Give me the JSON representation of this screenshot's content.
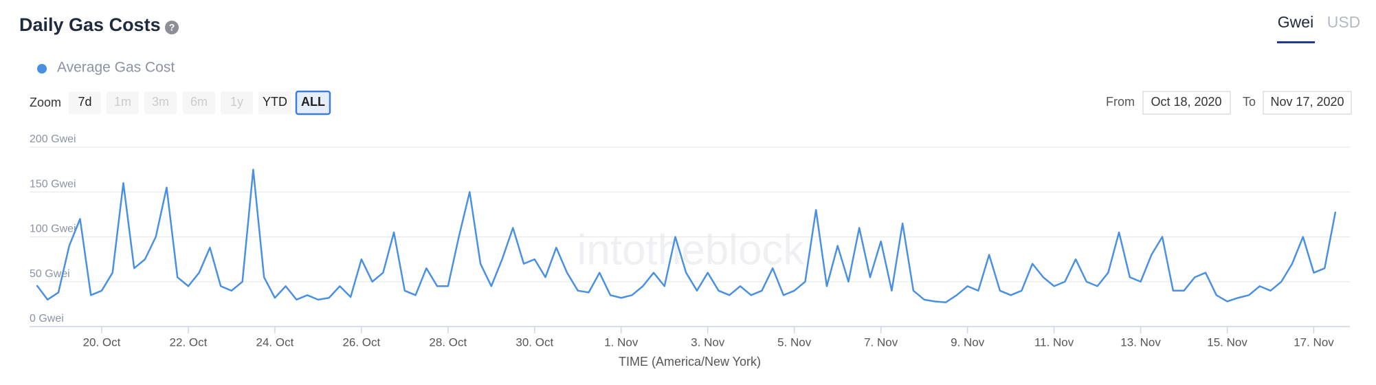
{
  "chart_data": {
    "type": "line",
    "title": "Daily Gas Costs",
    "help_icon": "?",
    "watermark": "intotheblock",
    "x_label": "TIME (America/New York)",
    "xlim": [
      "2020-10-18T08:00",
      "2020-11-17T20:00"
    ],
    "xticks": [
      {
        "value": "2020-10-20T00:00",
        "label": "20. Oct"
      },
      {
        "value": "2020-10-22T00:00",
        "label": "22. Oct"
      },
      {
        "value": "2020-10-24T00:00",
        "label": "24. Oct"
      },
      {
        "value": "2020-10-26T00:00",
        "label": "26. Oct"
      },
      {
        "value": "2020-10-28T00:00",
        "label": "28. Oct"
      },
      {
        "value": "2020-10-30T00:00",
        "label": "30. Oct"
      },
      {
        "value": "2020-11-01T00:00",
        "label": "1. Nov"
      },
      {
        "value": "2020-11-03T00:00",
        "label": "3. Nov"
      },
      {
        "value": "2020-11-05T00:00",
        "label": "5. Nov"
      },
      {
        "value": "2020-11-07T00:00",
        "label": "7. Nov"
      },
      {
        "value": "2020-11-09T00:00",
        "label": "9. Nov"
      },
      {
        "value": "2020-11-11T00:00",
        "label": "11. Nov"
      },
      {
        "value": "2020-11-13T00:00",
        "label": "13. Nov"
      },
      {
        "value": "2020-11-15T00:00",
        "label": "15. Nov"
      },
      {
        "value": "2020-11-17T00:00",
        "label": "17. Nov"
      }
    ],
    "ylim": [
      0,
      200
    ],
    "yticks": [
      {
        "value": 0,
        "label": "0 Gwei"
      },
      {
        "value": 50,
        "label": "50 Gwei"
      },
      {
        "value": 100,
        "label": "100 Gwei"
      },
      {
        "value": 150,
        "label": "150 Gwei"
      },
      {
        "value": 200,
        "label": "200 Gwei"
      }
    ],
    "grid": true,
    "x": [
      "2020-10-18T12:00",
      "2020-10-18T18:00",
      "2020-10-19T00:00",
      "2020-10-19T06:00",
      "2020-10-19T12:00",
      "2020-10-19T18:00",
      "2020-10-20T00:00",
      "2020-10-20T06:00",
      "2020-10-20T12:00",
      "2020-10-20T18:00",
      "2020-10-21T00:00",
      "2020-10-21T06:00",
      "2020-10-21T12:00",
      "2020-10-21T18:00",
      "2020-10-22T00:00",
      "2020-10-22T06:00",
      "2020-10-22T12:00",
      "2020-10-22T18:00",
      "2020-10-23T00:00",
      "2020-10-23T06:00",
      "2020-10-23T12:00",
      "2020-10-23T18:00",
      "2020-10-24T00:00",
      "2020-10-24T06:00",
      "2020-10-24T12:00",
      "2020-10-24T18:00",
      "2020-10-25T00:00",
      "2020-10-25T06:00",
      "2020-10-25T12:00",
      "2020-10-25T18:00",
      "2020-10-26T00:00",
      "2020-10-26T06:00",
      "2020-10-26T12:00",
      "2020-10-26T18:00",
      "2020-10-27T00:00",
      "2020-10-27T06:00",
      "2020-10-27T12:00",
      "2020-10-27T18:00",
      "2020-10-28T00:00",
      "2020-10-28T06:00",
      "2020-10-28T12:00",
      "2020-10-28T18:00",
      "2020-10-29T00:00",
      "2020-10-29T06:00",
      "2020-10-29T12:00",
      "2020-10-29T18:00",
      "2020-10-30T00:00",
      "2020-10-30T06:00",
      "2020-10-30T12:00",
      "2020-10-30T18:00",
      "2020-10-31T00:00",
      "2020-10-31T06:00",
      "2020-10-31T12:00",
      "2020-10-31T18:00",
      "2020-11-01T00:00",
      "2020-11-01T06:00",
      "2020-11-01T12:00",
      "2020-11-01T18:00",
      "2020-11-02T00:00",
      "2020-11-02T06:00",
      "2020-11-02T12:00",
      "2020-11-02T18:00",
      "2020-11-03T00:00",
      "2020-11-03T06:00",
      "2020-11-03T12:00",
      "2020-11-03T18:00",
      "2020-11-04T00:00",
      "2020-11-04T06:00",
      "2020-11-04T12:00",
      "2020-11-04T18:00",
      "2020-11-05T00:00",
      "2020-11-05T06:00",
      "2020-11-05T12:00",
      "2020-11-05T18:00",
      "2020-11-06T00:00",
      "2020-11-06T06:00",
      "2020-11-06T12:00",
      "2020-11-06T18:00",
      "2020-11-07T00:00",
      "2020-11-07T06:00",
      "2020-11-07T12:00",
      "2020-11-07T18:00",
      "2020-11-08T00:00",
      "2020-11-08T06:00",
      "2020-11-08T12:00",
      "2020-11-08T18:00",
      "2020-11-09T00:00",
      "2020-11-09T06:00",
      "2020-11-09T12:00",
      "2020-11-09T18:00",
      "2020-11-10T00:00",
      "2020-11-10T06:00",
      "2020-11-10T12:00",
      "2020-11-10T18:00",
      "2020-11-11T00:00",
      "2020-11-11T06:00",
      "2020-11-11T12:00",
      "2020-11-11T18:00",
      "2020-11-12T00:00",
      "2020-11-12T06:00",
      "2020-11-12T12:00",
      "2020-11-12T18:00",
      "2020-11-13T00:00",
      "2020-11-13T06:00",
      "2020-11-13T12:00",
      "2020-11-13T18:00",
      "2020-11-14T00:00",
      "2020-11-14T06:00",
      "2020-11-14T12:00",
      "2020-11-14T18:00",
      "2020-11-15T00:00",
      "2020-11-15T06:00",
      "2020-11-15T12:00",
      "2020-11-15T18:00",
      "2020-11-16T00:00",
      "2020-11-16T06:00",
      "2020-11-16T12:00",
      "2020-11-16T18:00",
      "2020-11-17T00:00",
      "2020-11-17T06:00",
      "2020-11-17T12:00"
    ],
    "series": [
      {
        "name": "Average Gas Cost",
        "color": "#4a90e2",
        "values": [
          46,
          30,
          38,
          90,
          120,
          35,
          40,
          60,
          160,
          65,
          75,
          100,
          155,
          55,
          45,
          60,
          88,
          45,
          40,
          50,
          175,
          55,
          32,
          45,
          30,
          35,
          30,
          32,
          45,
          33,
          75,
          50,
          60,
          105,
          40,
          35,
          65,
          45,
          45,
          100,
          150,
          70,
          45,
          75,
          110,
          70,
          75,
          55,
          88,
          60,
          40,
          38,
          60,
          35,
          32,
          35,
          45,
          60,
          45,
          100,
          60,
          40,
          60,
          40,
          35,
          45,
          35,
          40,
          65,
          35,
          40,
          50,
          130,
          45,
          90,
          50,
          110,
          55,
          95,
          40,
          115,
          40,
          30,
          28,
          27,
          35,
          45,
          40,
          80,
          40,
          35,
          40,
          70,
          55,
          45,
          50,
          75,
          50,
          45,
          60,
          105,
          55,
          50,
          80,
          100,
          40,
          40,
          55,
          60,
          35,
          28,
          32,
          35,
          45,
          40,
          50,
          70,
          100,
          60,
          65,
          128
        ]
      }
    ]
  },
  "controls": {
    "units": [
      "Gwei",
      "USD"
    ],
    "zoom_label": "Zoom",
    "zoom_buttons": [
      "7d",
      "1m",
      "3m",
      "6m",
      "1y",
      "YTD",
      "ALL"
    ],
    "from_label": "From",
    "from": "Oct 18, 2020",
    "to_label": "To",
    "to": "Nov 17, 2020"
  }
}
